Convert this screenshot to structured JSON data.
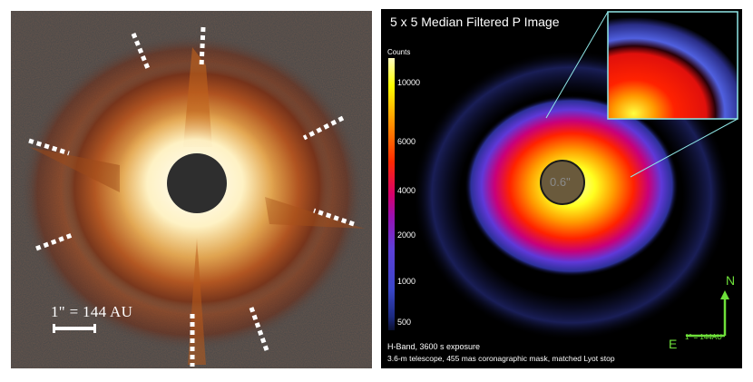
{
  "left_image": {
    "scale_label": "1\" = 144 AU"
  },
  "right_image": {
    "title": "5 x 5 Median Filtered P Image",
    "colorbar_label": "Counts",
    "colorbar_ticks": [
      "10000",
      "6000",
      "4000",
      "2000",
      "1000",
      "500"
    ],
    "mask_label": "0.6\"",
    "caption_line1": "H-Band, 3600 s exposure",
    "caption_line2": "3.6-m telescope, 455 mas coronagraphic mask, matched Lyot stop",
    "compass_north": "N",
    "compass_east": "E",
    "compass_scale": "1\" = 144AU"
  },
  "colors": {
    "compass": "#6ee03a",
    "inset_border": "#8fe6e6"
  }
}
